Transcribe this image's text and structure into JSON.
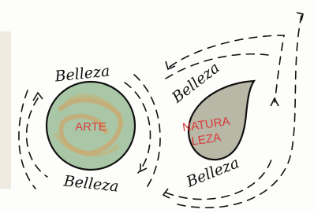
{
  "nodes": [
    {
      "label": "ARTE"
    },
    {
      "label_lines": [
        "NATURA",
        "LEZA"
      ]
    }
  ],
  "labels": [
    "Belleza",
    "Belleza",
    "Belleza",
    "Belleza"
  ]
}
